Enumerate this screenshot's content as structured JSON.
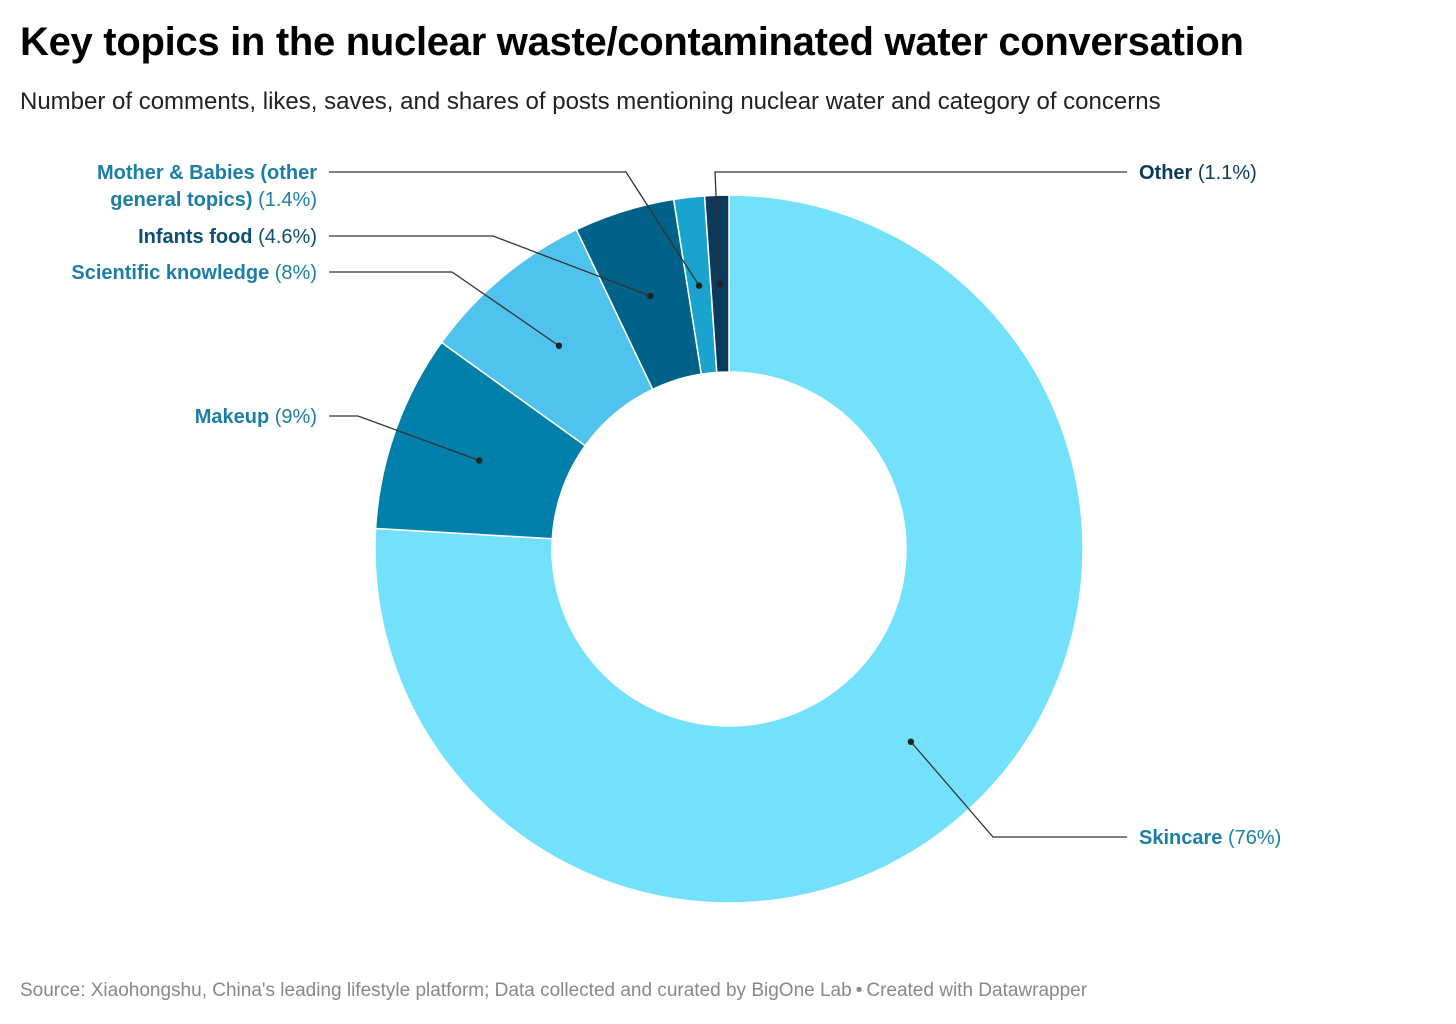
{
  "title": "Key topics in the nuclear waste/contaminated water conversation",
  "subtitle": "Number of comments, likes, saves, and shares of posts mentioning nuclear water and category of concerns",
  "footer": {
    "source": "Source: Xiaohongshu, China's leading lifestyle platform; Data collected and curated by BigOne Lab",
    "separator": "•",
    "credit": "Created with Datawrapper"
  },
  "chart_data": {
    "type": "pie",
    "donut": true,
    "legend": "direct labels",
    "slices": [
      {
        "name": "Skincare",
        "value": 76,
        "value_label": "(76%)",
        "color": "#74e1fc",
        "label_color": "#1b7ea6"
      },
      {
        "name": "Makeup",
        "value": 9,
        "value_label": "(9%)",
        "color": "#007faa",
        "label_color": "#1b7ea6"
      },
      {
        "name": "Scientific knowledge",
        "value": 8,
        "value_label": "(8%)",
        "color": "#4fc3ed",
        "label_color": "#1b7ea6"
      },
      {
        "name": "Infants food",
        "value": 4.6,
        "value_label": "(4.6%)",
        "color": "#016289",
        "label_color": "#0b4f73"
      },
      {
        "name_lines": [
          "Mother & Babies (other",
          "general topics)"
        ],
        "name": "Mother & Babies (other general topics)",
        "value": 1.4,
        "value_label": "(1.4%)",
        "color": "#1ba3cf",
        "label_color": "#1b7ea6"
      },
      {
        "name": "Other",
        "value": 1.1,
        "value_label": "(1.1%)",
        "color": "#0b3a5c",
        "label_color": "#0b3a5c"
      }
    ]
  }
}
